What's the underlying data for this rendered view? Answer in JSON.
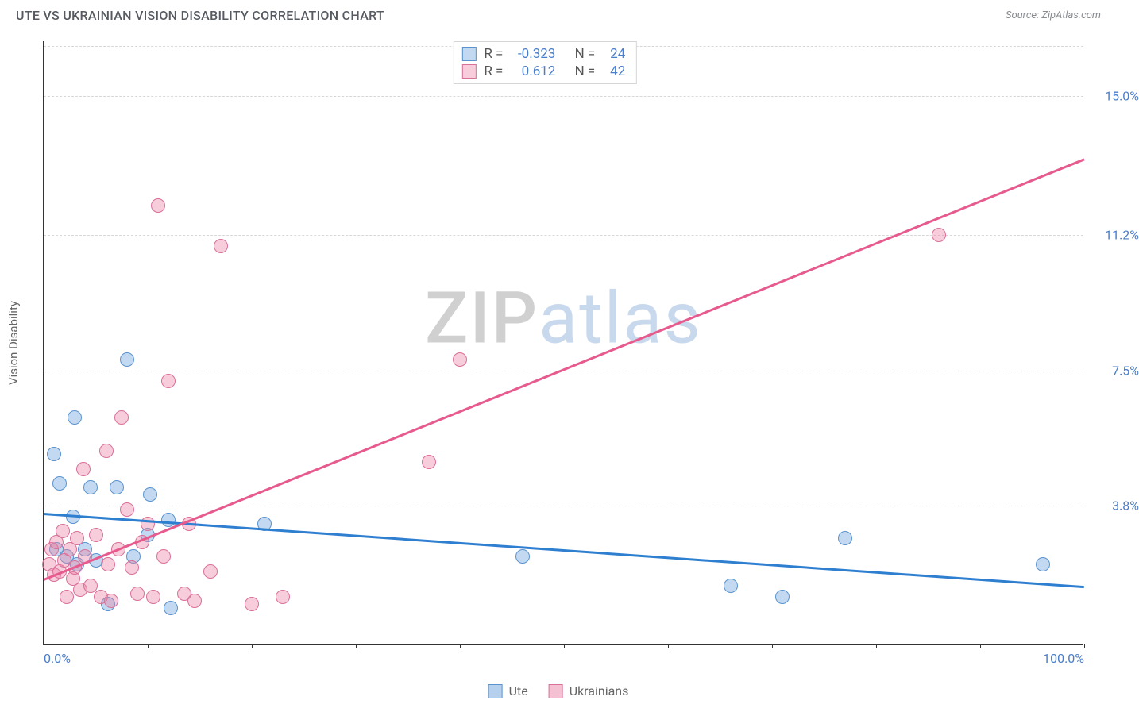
{
  "header": {
    "title": "UTE VS UKRAINIAN VISION DISABILITY CORRELATION CHART",
    "source": "Source: ZipAtlas.com"
  },
  "watermark": {
    "part1": "ZIP",
    "part2": "atlas"
  },
  "chart": {
    "type": "scatter",
    "y_axis_label": "Vision Disability",
    "background_color": "#ffffff",
    "grid_color": "#d8d8d8",
    "axis_color": "#333333",
    "xlim": [
      0,
      100
    ],
    "ylim": [
      0,
      16.5
    ],
    "x_ticks": [
      0,
      10,
      20,
      30,
      40,
      50,
      60,
      70,
      80,
      90,
      100
    ],
    "x_tick_labels": {
      "0": "0.0%",
      "100": "100.0%"
    },
    "y_gridlines": [
      3.8,
      7.5,
      11.2,
      15.0
    ],
    "y_tick_labels": [
      "3.8%",
      "7.5%",
      "11.2%",
      "15.0%"
    ],
    "tick_label_color": "#4a7ec9",
    "tick_label_fontsize": 16,
    "series": [
      {
        "name": "Ute",
        "marker_fill": "rgba(120,170,225,0.45)",
        "marker_stroke": "#5a93cf",
        "marker_radius": 9,
        "trend_color": "#2f7fd1",
        "trend": {
          "x1": 0,
          "y1": 3.6,
          "x2": 100,
          "y2": 1.6
        },
        "R": "-0.323",
        "N": "24",
        "points": [
          [
            1.0,
            5.2
          ],
          [
            1.5,
            4.4
          ],
          [
            1.2,
            2.6
          ],
          [
            2.2,
            2.4
          ],
          [
            2.8,
            3.5
          ],
          [
            3.0,
            6.2
          ],
          [
            3.2,
            2.2
          ],
          [
            4.0,
            2.6
          ],
          [
            4.5,
            4.3
          ],
          [
            5.0,
            2.3
          ],
          [
            6.2,
            1.1
          ],
          [
            7.0,
            4.3
          ],
          [
            8.0,
            7.8
          ],
          [
            8.6,
            2.4
          ],
          [
            10.0,
            3.0
          ],
          [
            10.2,
            4.1
          ],
          [
            12.0,
            3.4
          ],
          [
            12.2,
            1.0
          ],
          [
            21.2,
            3.3
          ],
          [
            46.0,
            2.4
          ],
          [
            66.0,
            1.6
          ],
          [
            71.0,
            1.3
          ],
          [
            77.0,
            2.9
          ],
          [
            96.0,
            2.2
          ]
        ]
      },
      {
        "name": "Ukrainians",
        "marker_fill": "rgba(235,130,165,0.40)",
        "marker_stroke": "#d97099",
        "marker_radius": 9,
        "trend_color": "#e75a8d",
        "trend": {
          "x1": 0,
          "y1": 1.8,
          "x2": 100,
          "y2": 13.3
        },
        "R": "0.612",
        "N": "42",
        "points": [
          [
            0.5,
            2.2
          ],
          [
            0.8,
            2.6
          ],
          [
            1.0,
            1.9
          ],
          [
            1.2,
            2.8
          ],
          [
            1.5,
            2.0
          ],
          [
            1.8,
            3.1
          ],
          [
            2.0,
            2.3
          ],
          [
            2.2,
            1.3
          ],
          [
            2.5,
            2.6
          ],
          [
            2.8,
            1.8
          ],
          [
            3.0,
            2.1
          ],
          [
            3.2,
            2.9
          ],
          [
            3.5,
            1.5
          ],
          [
            3.8,
            4.8
          ],
          [
            4.0,
            2.4
          ],
          [
            4.5,
            1.6
          ],
          [
            5.0,
            3.0
          ],
          [
            5.5,
            1.3
          ],
          [
            6.0,
            5.3
          ],
          [
            6.2,
            2.2
          ],
          [
            6.5,
            1.2
          ],
          [
            7.2,
            2.6
          ],
          [
            7.5,
            6.2
          ],
          [
            8.0,
            3.7
          ],
          [
            8.5,
            2.1
          ],
          [
            9.0,
            1.4
          ],
          [
            9.5,
            2.8
          ],
          [
            10.0,
            3.3
          ],
          [
            10.5,
            1.3
          ],
          [
            11.0,
            12.0
          ],
          [
            11.5,
            2.4
          ],
          [
            12.0,
            7.2
          ],
          [
            13.5,
            1.4
          ],
          [
            14.0,
            3.3
          ],
          [
            14.5,
            1.2
          ],
          [
            16.0,
            2.0
          ],
          [
            17.0,
            10.9
          ],
          [
            20.0,
            1.1
          ],
          [
            23.0,
            1.3
          ],
          [
            37.0,
            5.0
          ],
          [
            40.0,
            7.8
          ],
          [
            86.0,
            11.2
          ]
        ]
      }
    ],
    "legend_top": {
      "R_label": "R =",
      "N_label": "N ="
    },
    "legend_bottom": [
      {
        "label": "Ute",
        "fill": "rgba(120,170,225,0.55)",
        "stroke": "#5a93cf"
      },
      {
        "label": "Ukrainians",
        "fill": "rgba(235,130,165,0.50)",
        "stroke": "#d97099"
      }
    ]
  }
}
